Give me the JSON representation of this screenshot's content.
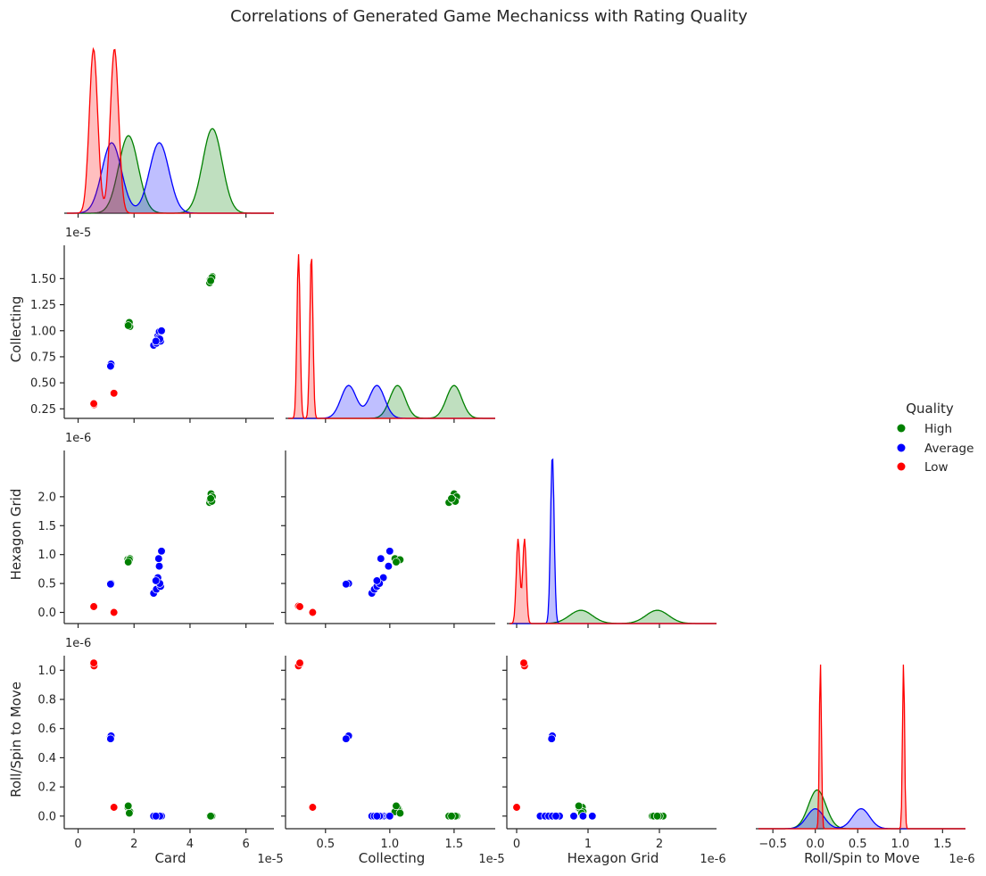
{
  "chart_data": {
    "type": "scatter",
    "title": "Correlations of Generated Game Mechanicss with Rating Quality",
    "variables": [
      "Card",
      "Collecting",
      "Hexagon Grid",
      "Roll/Spin to Move"
    ],
    "scale_labels": {
      "Card": "1e-5",
      "Collecting": "1e-5",
      "Hexagon Grid": "1e-6",
      "Roll/Spin to Move": "1e-6"
    },
    "axes": {
      "Card": {
        "range": [
          -0.4,
          7.0
        ],
        "ticks": [
          "0",
          "2",
          "4",
          "6"
        ],
        "tick_values": [
          0,
          2,
          4,
          6
        ]
      },
      "Collecting": {
        "range": [
          0.21,
          1.82
        ],
        "ticks": [
          "0.25",
          "0.50",
          "0.75",
          "1.00",
          "1.25",
          "1.50"
        ],
        "tick_values": [
          0.25,
          0.5,
          0.75,
          1.0,
          1.25,
          1.5
        ],
        "x_ticks": [
          "0.5",
          "1.0",
          "1.5"
        ],
        "x_tick_values": [
          0.5,
          1.0,
          1.5
        ]
      },
      "Hexagon Grid": {
        "range": [
          -0.1,
          2.8
        ],
        "ticks": [
          "0.0",
          "0.5",
          "1.0",
          "1.5",
          "2.0"
        ],
        "tick_values": [
          0,
          0.5,
          1.0,
          1.5,
          2.0
        ],
        "x_ticks": [
          "0",
          "1",
          "2"
        ],
        "x_tick_values": [
          0,
          1,
          2
        ]
      },
      "Roll/Spin to Move": {
        "range": [
          -0.67,
          1.77
        ],
        "y_range": [
          -0.05,
          1.1
        ],
        "ticks": [
          "0.0",
          "0.2",
          "0.4",
          "0.6",
          "0.8",
          "1.0"
        ],
        "tick_values": [
          0,
          0.2,
          0.4,
          0.6,
          0.8,
          1.0
        ],
        "x_ticks": [
          "−0.5",
          "0.0",
          "0.5",
          "1.0",
          "1.5"
        ],
        "x_tick_values": [
          -0.5,
          0,
          0.5,
          1.0,
          1.5
        ]
      }
    },
    "legend": {
      "title": "Quality",
      "placement": "right"
    },
    "series": [
      {
        "name": "High",
        "color": "#008000",
        "points": [
          [
            1.8,
            1.05,
            0.88,
            0.05
          ],
          [
            1.82,
            1.07,
            0.9,
            0.04
          ],
          [
            1.78,
            1.06,
            0.92,
            0.06
          ],
          [
            1.85,
            1.04,
            0.93,
            0.03
          ],
          [
            1.83,
            1.08,
            0.91,
            0.02
          ],
          [
            1.79,
            1.05,
            0.87,
            0.07
          ],
          [
            4.7,
            1.46,
            1.9,
            0.0
          ],
          [
            4.75,
            1.5,
            2.05,
            0.0
          ],
          [
            4.8,
            1.52,
            2.0,
            0.0
          ],
          [
            4.72,
            1.49,
            1.95,
            0.0
          ],
          [
            4.78,
            1.51,
            1.92,
            0.0
          ],
          [
            4.74,
            1.48,
            1.97,
            0.0
          ]
        ],
        "kde": {
          "Card": [
            [
              1.8,
              0.55
            ],
            [
              4.8,
              0.6
            ]
          ],
          "Collecting": [
            [
              1.06,
              0.5
            ],
            [
              1.5,
              0.5
            ]
          ],
          "Hexagon Grid": [
            [
              0.9,
              0.5
            ],
            [
              1.97,
              0.5
            ]
          ],
          "Roll/Spin to Move": [
            [
              0.0,
              0.55
            ],
            [
              0.05,
              0.45
            ]
          ]
        }
      },
      {
        "name": "Average",
        "color": "#0000ff",
        "points": [
          [
            1.15,
            0.67,
            0.5,
            0.54
          ],
          [
            1.18,
            0.68,
            0.5,
            0.55
          ],
          [
            1.16,
            0.66,
            0.49,
            0.53
          ],
          [
            2.7,
            0.86,
            0.33,
            0.0
          ],
          [
            2.8,
            0.88,
            0.4,
            0.0
          ],
          [
            2.95,
            0.9,
            0.45,
            0.0
          ],
          [
            2.85,
            0.95,
            0.6,
            0.0
          ],
          [
            2.9,
            0.99,
            0.8,
            0.0
          ],
          [
            2.88,
            0.93,
            0.93,
            0.0
          ],
          [
            2.98,
            1.0,
            1.06,
            0.0
          ],
          [
            2.92,
            0.92,
            0.5,
            0.0
          ],
          [
            2.78,
            0.9,
            0.55,
            0.0
          ]
        ],
        "kde": {
          "Card": [
            [
              1.2,
              0.5
            ],
            [
              2.9,
              0.5
            ]
          ],
          "Collecting": [
            [
              0.68,
              0.5
            ],
            [
              0.9,
              0.5
            ]
          ],
          "Hexagon Grid": [
            [
              0.5,
              1.0
            ]
          ],
          "Roll/Spin to Move": [
            [
              0.0,
              0.5
            ],
            [
              0.54,
              0.5
            ]
          ]
        }
      },
      {
        "name": "Low",
        "color": "#ff0000",
        "points": [
          [
            0.55,
            0.3,
            0.1,
            1.04
          ],
          [
            0.57,
            0.29,
            0.11,
            1.03
          ],
          [
            0.56,
            0.3,
            0.1,
            1.05
          ],
          [
            1.28,
            0.4,
            0.0,
            0.06
          ]
        ],
        "kde": {
          "Card": [
            [
              0.55,
              0.5
            ],
            [
              1.3,
              0.5
            ]
          ],
          "Collecting": [
            [
              0.29,
              0.5
            ],
            [
              0.39,
              0.5
            ]
          ],
          "Hexagon Grid": [
            [
              0.02,
              0.5
            ],
            [
              0.11,
              0.5
            ]
          ],
          "Roll/Spin to Move": [
            [
              0.06,
              0.5
            ],
            [
              1.04,
              0.5
            ]
          ]
        }
      }
    ]
  }
}
